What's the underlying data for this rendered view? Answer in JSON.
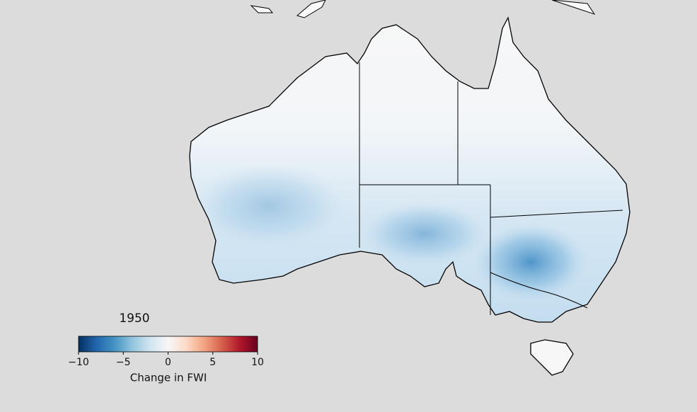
{
  "year_label": "1950",
  "colorbar": {
    "label": "Change in FWI",
    "clim": [
      -10,
      10
    ],
    "ticks": [
      {
        "value": -10,
        "label": "−10"
      },
      {
        "value": -5,
        "label": "−5"
      },
      0,
      5,
      10
    ],
    "colors": [
      "#053061",
      "#2166ac",
      "#4393c3",
      "#92c5de",
      "#d1e5f0",
      "#f7f7f7",
      "#fddbc7",
      "#f4a582",
      "#d6604d",
      "#b2182b",
      "#67001f"
    ]
  }
}
